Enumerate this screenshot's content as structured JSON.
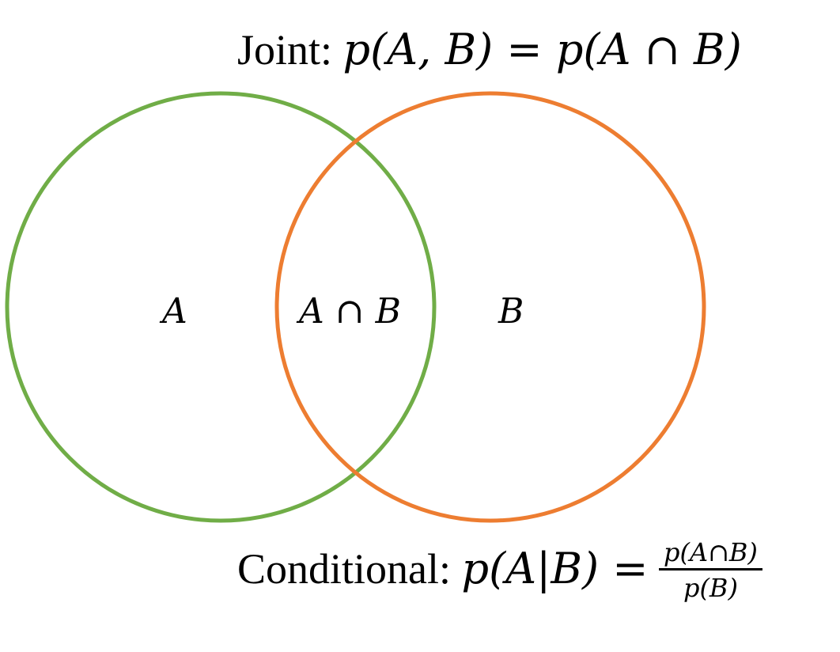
{
  "joint": {
    "word": "Joint:",
    "expression": "p(A, B) = p(A ∩ B)"
  },
  "regions": {
    "a": "A",
    "intersection": "A ∩ B",
    "b": "B"
  },
  "conditional": {
    "word": "Conditional:",
    "lhs": "p(A|B) =",
    "numerator": "p(A∩B)",
    "denominator": "p(B)"
  },
  "colors": {
    "circle_a": "#70AD47",
    "circle_b": "#ED7D31"
  }
}
